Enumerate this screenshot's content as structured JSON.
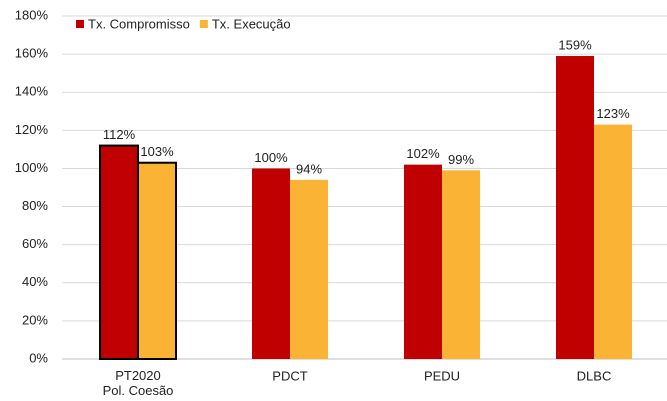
{
  "chart_data": {
    "type": "bar",
    "categories": [
      "PT2020\nPol. Coesão",
      "PDCT",
      "PEDU",
      "DLBC"
    ],
    "series": [
      {
        "name": "Tx. Compromisso",
        "color": "#c00000",
        "values": [
          112,
          100,
          102,
          159
        ],
        "value_labels": [
          "112%",
          "100%",
          "102%",
          "159%"
        ]
      },
      {
        "name": "Tx. Execução",
        "color": "#fbb335",
        "values": [
          103,
          94,
          99,
          123
        ],
        "value_labels": [
          "103%",
          "94%",
          "99%",
          "123%"
        ]
      }
    ],
    "ylim": [
      0,
      180
    ],
    "yticks": [
      {
        "value": 0,
        "label": "0%"
      },
      {
        "value": 20,
        "label": "20%"
      },
      {
        "value": 40,
        "label": "40%"
      },
      {
        "value": 60,
        "label": "60%"
      },
      {
        "value": 80,
        "label": "80%"
      },
      {
        "value": 100,
        "label": "100%"
      },
      {
        "value": 120,
        "label": "120%"
      },
      {
        "value": 140,
        "label": "140%"
      },
      {
        "value": 160,
        "label": "160%"
      },
      {
        "value": 180,
        "label": "180%"
      }
    ],
    "grid": true,
    "legend": "top-left",
    "outlined_category": 0
  }
}
